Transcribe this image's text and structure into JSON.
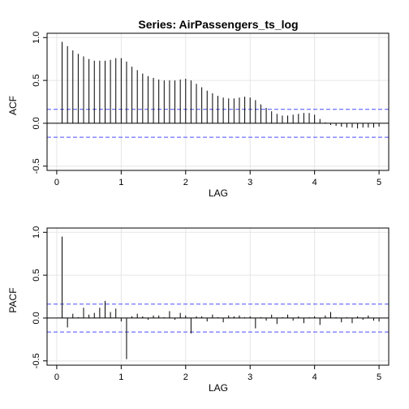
{
  "chart_data": [
    {
      "type": "bar",
      "title": "Series:  AirPassengers_ts_log",
      "xlabel": "LAG",
      "ylabel": "ACF",
      "xlim": [
        -0.15,
        5.15
      ],
      "ylim": [
        -0.55,
        1.05
      ],
      "xticks": [
        "0",
        "1",
        "2",
        "3",
        "4",
        "5"
      ],
      "yticks": [
        "-0.5",
        "0.0",
        "0.5",
        "1.0"
      ],
      "grid": true,
      "confidence_band": [
        -0.163,
        0.163
      ],
      "x": [
        0.0833,
        0.1667,
        0.25,
        0.3333,
        0.4167,
        0.5,
        0.5833,
        0.6667,
        0.75,
        0.8333,
        0.9167,
        1.0,
        1.0833,
        1.1667,
        1.25,
        1.3333,
        1.4167,
        1.5,
        1.5833,
        1.6667,
        1.75,
        1.8333,
        1.9167,
        2.0,
        2.0833,
        2.1667,
        2.25,
        2.3333,
        2.4167,
        2.5,
        2.5833,
        2.6667,
        2.75,
        2.8333,
        2.9167,
        3.0,
        3.0833,
        3.1667,
        3.25,
        3.3333,
        3.4167,
        3.5,
        3.5833,
        3.6667,
        3.75,
        3.8333,
        3.9167,
        4.0,
        4.0833,
        4.1667,
        4.25,
        4.3333,
        4.4167,
        4.5,
        4.5833,
        4.6667,
        4.75,
        4.8333,
        4.9167,
        5.0
      ],
      "values": [
        0.95,
        0.9,
        0.85,
        0.81,
        0.78,
        0.75,
        0.73,
        0.73,
        0.73,
        0.74,
        0.76,
        0.76,
        0.72,
        0.66,
        0.62,
        0.58,
        0.55,
        0.53,
        0.51,
        0.5,
        0.5,
        0.5,
        0.51,
        0.52,
        0.5,
        0.46,
        0.42,
        0.38,
        0.35,
        0.32,
        0.3,
        0.29,
        0.29,
        0.3,
        0.31,
        0.3,
        0.27,
        0.22,
        0.18,
        0.14,
        0.11,
        0.09,
        0.09,
        0.1,
        0.11,
        0.12,
        0.12,
        0.1,
        0.05,
        0.01,
        -0.02,
        -0.03,
        -0.04,
        -0.05,
        -0.05,
        -0.06,
        -0.05,
        -0.05,
        -0.05,
        -0.04
      ]
    },
    {
      "type": "bar",
      "title": "",
      "xlabel": "LAG",
      "ylabel": "PACF",
      "xlim": [
        -0.15,
        5.15
      ],
      "ylim": [
        -0.55,
        1.05
      ],
      "xticks": [
        "0",
        "1",
        "2",
        "3",
        "4",
        "5"
      ],
      "yticks": [
        "-0.5",
        "0.0",
        "0.5",
        "1.0"
      ],
      "grid": true,
      "confidence_band": [
        -0.163,
        0.163
      ],
      "x": [
        0.0833,
        0.1667,
        0.25,
        0.3333,
        0.4167,
        0.5,
        0.5833,
        0.6667,
        0.75,
        0.8333,
        0.9167,
        1.0,
        1.0833,
        1.1667,
        1.25,
        1.3333,
        1.4167,
        1.5,
        1.5833,
        1.6667,
        1.75,
        1.8333,
        1.9167,
        2.0,
        2.0833,
        2.1667,
        2.25,
        2.3333,
        2.4167,
        2.5,
        2.5833,
        2.6667,
        2.75,
        2.8333,
        2.9167,
        3.0,
        3.0833,
        3.1667,
        3.25,
        3.3333,
        3.4167,
        3.5,
        3.5833,
        3.6667,
        3.75,
        3.8333,
        3.9167,
        4.0,
        4.0833,
        4.1667,
        4.25,
        4.3333,
        4.4167,
        4.5,
        4.5833,
        4.6667,
        4.75,
        4.8333,
        4.9167,
        5.0
      ],
      "values": [
        0.95,
        -0.11,
        0.05,
        0.01,
        0.12,
        0.04,
        0.06,
        0.12,
        0.2,
        0.07,
        0.11,
        -0.04,
        -0.48,
        0.02,
        0.05,
        0.02,
        -0.02,
        0.03,
        0.03,
        0.01,
        0.08,
        -0.02,
        0.06,
        0.03,
        -0.18,
        0.02,
        0.02,
        -0.04,
        0.04,
        0.01,
        -0.05,
        0.03,
        0.02,
        0.03,
        0.01,
        0.02,
        -0.12,
        0.01,
        -0.03,
        0.04,
        -0.07,
        0.01,
        0.04,
        -0.03,
        0.02,
        -0.06,
        0.01,
        0.02,
        -0.08,
        0.03,
        0.07,
        0.01,
        -0.05,
        0.01,
        -0.06,
        0.02,
        -0.02,
        0.03,
        -0.03,
        -0.04
      ]
    }
  ]
}
